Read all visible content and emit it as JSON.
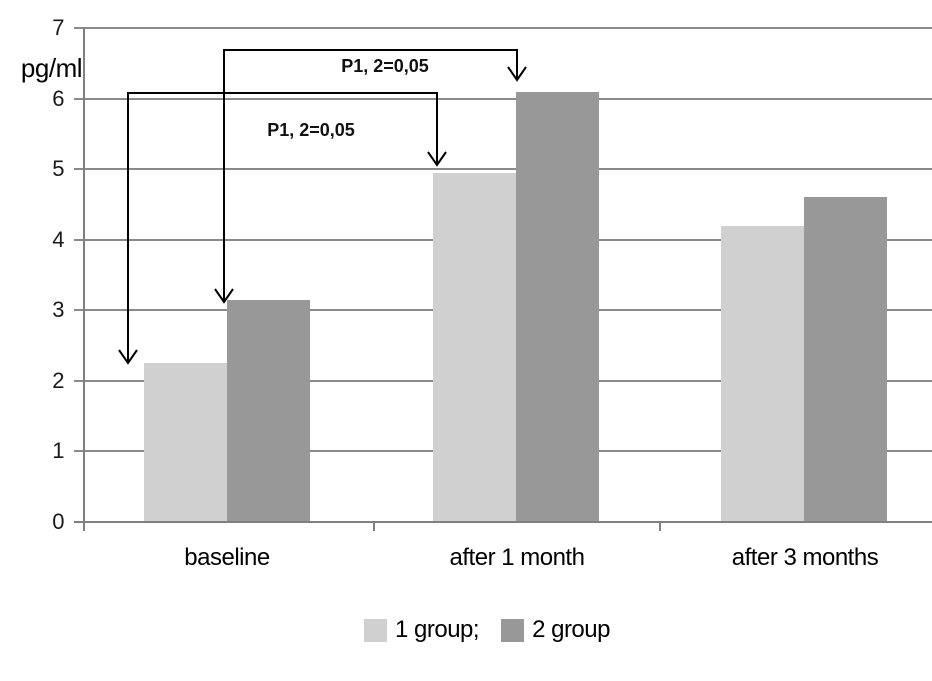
{
  "chart_data": {
    "type": "bar",
    "title": "",
    "ylabel": "pg/ml",
    "xlabel": "",
    "categories": [
      "baseline",
      "after 1 month",
      "after 3 months"
    ],
    "series": [
      {
        "name": "1 group",
        "color": "#d0d0d0",
        "values": [
          2.25,
          4.95,
          4.2
        ]
      },
      {
        "name": "2 group",
        "color": "#989898",
        "values": [
          3.15,
          6.1,
          4.6
        ]
      }
    ],
    "ylim": [
      0,
      7
    ],
    "ytick_step": 1,
    "yticklabels": [
      "0",
      "1",
      "2",
      "3",
      "4",
      "5",
      "6",
      "7"
    ],
    "grid": true,
    "gridline_color": "#8a8a8a",
    "legend_position": "bottom",
    "legend_labels": [
      "1 group;",
      "2 group"
    ],
    "annotations": [
      {
        "text": "P1, 2=0,05",
        "connects": "2 group: baseline vs after 1 month"
      },
      {
        "text": "P1, 2=0,05",
        "connects": "1 group: baseline vs after 1 month"
      }
    ]
  }
}
